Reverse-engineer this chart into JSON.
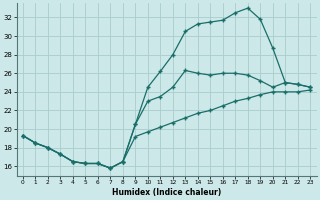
{
  "xlabel": "Humidex (Indice chaleur)",
  "xlim": [
    -0.5,
    23.5
  ],
  "ylim": [
    15.0,
    33.5
  ],
  "xticks": [
    0,
    1,
    2,
    3,
    4,
    5,
    6,
    7,
    8,
    9,
    10,
    11,
    12,
    13,
    14,
    15,
    16,
    17,
    18,
    19,
    20,
    21,
    22,
    23
  ],
  "yticks": [
    16,
    18,
    20,
    22,
    24,
    26,
    28,
    30,
    32
  ],
  "bg_color": "#cce8e8",
  "grid_color": "#aacccc",
  "line_color": "#1a6e6a",
  "line1_x": [
    0,
    1,
    2,
    3,
    4,
    5,
    6,
    7,
    8,
    9,
    10,
    11,
    12,
    13,
    14,
    15,
    16,
    17,
    18,
    19,
    20,
    21,
    22,
    23
  ],
  "line1_y": [
    19.3,
    18.5,
    18.0,
    17.3,
    16.5,
    16.3,
    16.3,
    15.8,
    16.5,
    20.5,
    23.0,
    23.5,
    24.5,
    26.3,
    26.0,
    25.8,
    26.0,
    26.0,
    25.8,
    25.2,
    24.5,
    25.0,
    24.8,
    24.5
  ],
  "line2_x": [
    0,
    1,
    2,
    3,
    4,
    5,
    6,
    7,
    8,
    9,
    10,
    11,
    12,
    13,
    14,
    15,
    16,
    17,
    18,
    19,
    20,
    21,
    22,
    23
  ],
  "line2_y": [
    19.3,
    18.5,
    18.0,
    17.3,
    16.5,
    16.3,
    16.3,
    15.8,
    16.5,
    19.2,
    19.7,
    20.2,
    20.7,
    21.2,
    21.7,
    22.0,
    22.5,
    23.0,
    23.3,
    23.7,
    24.0,
    24.0,
    24.0,
    24.2
  ],
  "line3_x": [
    0,
    1,
    2,
    3,
    4,
    5,
    6,
    7,
    8,
    9,
    10,
    11,
    12,
    13,
    14,
    15,
    16,
    17,
    18,
    19,
    20,
    21,
    22,
    23
  ],
  "line3_y": [
    19.3,
    18.5,
    18.0,
    17.3,
    16.5,
    16.3,
    16.3,
    15.8,
    16.5,
    20.5,
    24.5,
    26.2,
    28.0,
    30.5,
    31.3,
    31.5,
    31.7,
    32.5,
    33.0,
    31.8,
    28.7,
    25.0,
    24.8,
    24.5
  ]
}
